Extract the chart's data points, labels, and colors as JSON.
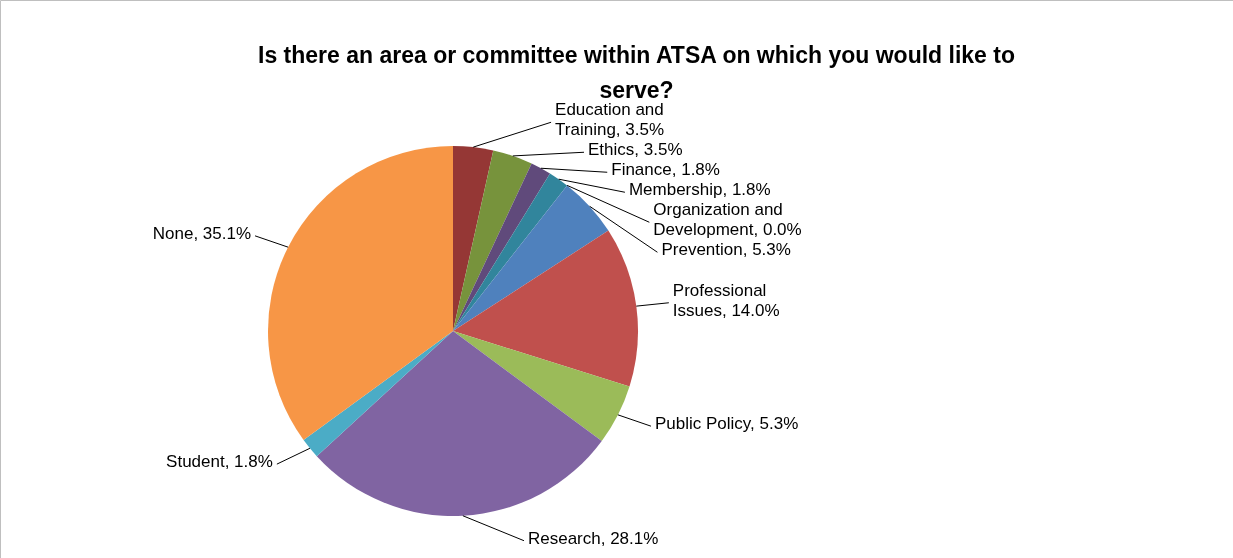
{
  "chart_data": {
    "type": "pie",
    "title": "Is there an area or committee within ATSA on which you would like to serve?",
    "categories": [
      "Education and Training",
      "Ethics",
      "Finance",
      "Membership",
      "Organization and Development",
      "Prevention",
      "Professional Issues",
      "Public Policy",
      "Research",
      "Student",
      "None"
    ],
    "values": [
      3.5,
      3.5,
      1.8,
      1.8,
      0.0,
      5.3,
      14.0,
      5.3,
      28.1,
      1.8,
      35.1
    ],
    "value_labels": [
      "3.5%",
      "3.5%",
      "1.8%",
      "1.8%",
      "0.0%",
      "5.3%",
      "14.0%",
      "5.3%",
      "28.1%",
      "1.8%",
      "35.1%"
    ],
    "colors": [
      "#953735",
      "#77933c",
      "#604a7b",
      "#31859c",
      "#e46c0a",
      "#4f81bd",
      "#c0504d",
      "#9bbb59",
      "#8064a2",
      "#4bacc6",
      "#f79646"
    ]
  }
}
